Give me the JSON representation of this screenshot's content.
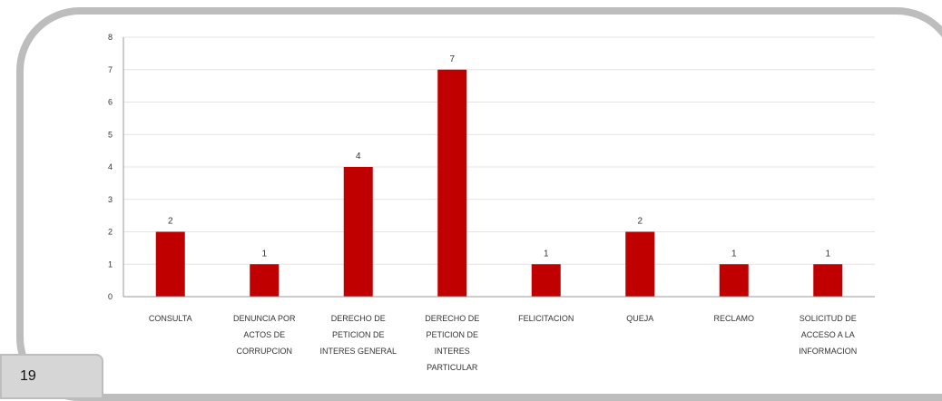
{
  "page": {
    "number": "19"
  },
  "chart_data": {
    "type": "bar",
    "categories": [
      "CONSULTA",
      "DENUNCIA POR ACTOS DE CORRUPCION",
      "DERECHO DE PETICION DE INTERES GENERAL",
      "DERECHO DE PETICION DE INTERES PARTICULAR",
      "FELICITACION",
      "QUEJA",
      "RECLAMO",
      "SOLICITUD DE ACCESO A LA INFORMACION"
    ],
    "category_lines": [
      [
        "CONSULTA"
      ],
      [
        "DENUNCIA POR",
        "ACTOS DE",
        "CORRUPCION"
      ],
      [
        "DERECHO DE",
        "PETICION DE",
        "INTERES GENERAL"
      ],
      [
        "DERECHO DE",
        "PETICION DE",
        "INTERES",
        "PARTICULAR"
      ],
      [
        "FELICITACION"
      ],
      [
        "QUEJA"
      ],
      [
        "RECLAMO"
      ],
      [
        "SOLICITUD DE",
        "ACCESO A LA",
        "INFORMACION"
      ]
    ],
    "values": [
      2,
      1,
      4,
      7,
      1,
      2,
      1,
      1
    ],
    "yticks": [
      0,
      1,
      2,
      3,
      4,
      5,
      6,
      7,
      8
    ],
    "ylim": [
      0,
      8
    ],
    "grid": true,
    "legend": "none",
    "bar_color": "#c00000",
    "grid_color": "#e4e4e4",
    "axis_color": "#9a9a9a",
    "title": "",
    "xlabel": "",
    "ylabel": ""
  }
}
